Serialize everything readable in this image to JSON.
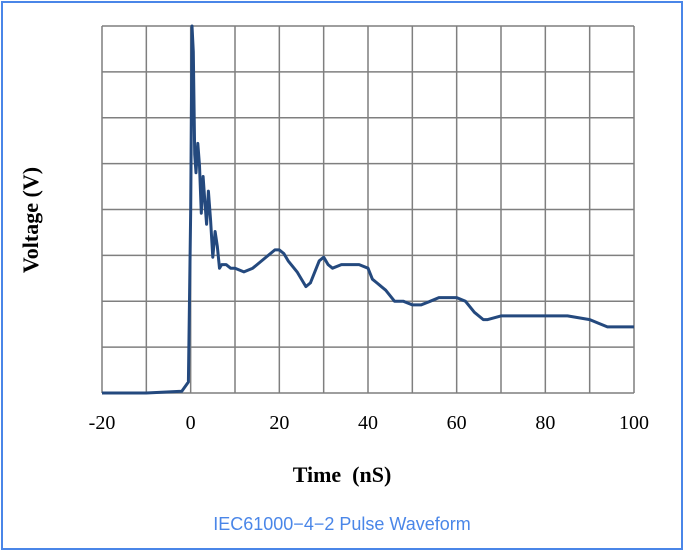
{
  "chart_data": {
    "type": "line",
    "title": "",
    "xlabel": "Time  (nS)",
    "ylabel": "Voltage (V)",
    "xlim": [
      -20,
      100
    ],
    "ylim": [
      0,
      1
    ],
    "x_ticks": [
      "-20",
      "0",
      "20",
      "40",
      "60",
      "80",
      "100"
    ],
    "grid": true,
    "line_color": "#24497e",
    "series": [
      {
        "name": "",
        "x": [
          -20,
          -10,
          -2,
          -0.5,
          0,
          0.3,
          0.6,
          0.9,
          1.2,
          1.6,
          2,
          2.4,
          2.8,
          3.2,
          3.6,
          4,
          4.5,
          5,
          5.5,
          6,
          6.5,
          7,
          8,
          9,
          10,
          12,
          14,
          16,
          18,
          19,
          20,
          21,
          22,
          24,
          26,
          27,
          28,
          29,
          30,
          31,
          32,
          34,
          36,
          38,
          40,
          41,
          42,
          44,
          46,
          48,
          50,
          52,
          54,
          56,
          58,
          60,
          62,
          64,
          66,
          67,
          70,
          75,
          80,
          85,
          90,
          92,
          94,
          96,
          98,
          100
        ],
        "y": [
          0.0,
          0.0,
          0.005,
          0.03,
          0.5,
          1.0,
          0.93,
          0.65,
          0.6,
          0.68,
          0.62,
          0.49,
          0.59,
          0.52,
          0.46,
          0.55,
          0.47,
          0.37,
          0.44,
          0.4,
          0.34,
          0.35,
          0.35,
          0.34,
          0.34,
          0.33,
          0.34,
          0.36,
          0.38,
          0.39,
          0.39,
          0.38,
          0.36,
          0.33,
          0.29,
          0.3,
          0.33,
          0.36,
          0.37,
          0.35,
          0.34,
          0.35,
          0.35,
          0.35,
          0.34,
          0.31,
          0.3,
          0.28,
          0.25,
          0.25,
          0.24,
          0.24,
          0.25,
          0.26,
          0.26,
          0.26,
          0.25,
          0.22,
          0.2,
          0.2,
          0.21,
          0.21,
          0.21,
          0.21,
          0.2,
          0.19,
          0.18,
          0.18,
          0.18,
          0.18
        ]
      }
    ]
  },
  "caption": "IEC61000−4−2 Pulse Waveform"
}
